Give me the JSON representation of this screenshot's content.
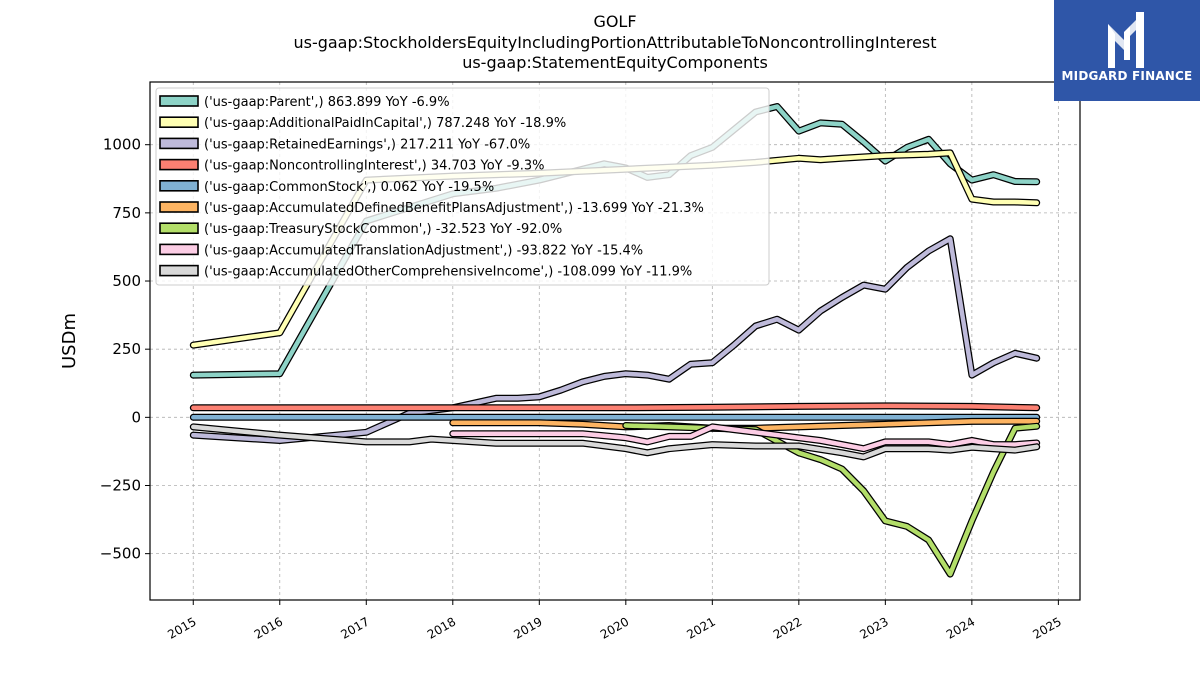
{
  "title_lines": [
    "GOLF",
    "us-gaap:StockholdersEquityIncludingPortionAttributableToNoncontrollingInterest",
    "us-gaap:StatementEquityComponents"
  ],
  "logo": {
    "text": "MIDGARD FINANCE",
    "bg": "#2f56a8"
  },
  "chart_data": {
    "type": "line",
    "title": "GOLF",
    "subtitle": "us-gaap:StockholdersEquityIncludingPortionAttributableToNoncontrollingInterest / us-gaap:StatementEquityComponents",
    "xlabel": "",
    "ylabel": "USDm",
    "xlim": [
      2014.5,
      2025.25
    ],
    "ylim": [
      -670,
      1230
    ],
    "x_ticks": [
      2015,
      2016,
      2017,
      2018,
      2019,
      2020,
      2021,
      2022,
      2023,
      2024,
      2025
    ],
    "y_ticks": [
      -500,
      -250,
      0,
      250,
      500,
      750,
      1000
    ],
    "y_tick_labels": [
      "−500",
      "−250",
      "0",
      "250",
      "500",
      "750",
      "1000"
    ],
    "grid": true,
    "legend_position": "upper-left",
    "series": [
      {
        "name": "('us-gaap:Parent',) 863.899 YoY -6.9%",
        "color": "#8dd3c7",
        "points": [
          [
            2015,
            155
          ],
          [
            2016,
            160
          ],
          [
            2017,
            720
          ],
          [
            2018,
            820
          ],
          [
            2018.5,
            840
          ],
          [
            2019,
            870
          ],
          [
            2019.75,
            930
          ],
          [
            2020,
            915
          ],
          [
            2020.25,
            880
          ],
          [
            2020.5,
            890
          ],
          [
            2020.75,
            960
          ],
          [
            2021,
            990
          ],
          [
            2021.5,
            1120
          ],
          [
            2021.75,
            1140
          ],
          [
            2022,
            1050
          ],
          [
            2022.25,
            1080
          ],
          [
            2022.5,
            1075
          ],
          [
            2022.75,
            1010
          ],
          [
            2023,
            940
          ],
          [
            2023.25,
            990
          ],
          [
            2023.5,
            1020
          ],
          [
            2023.75,
            930
          ],
          [
            2024,
            870
          ],
          [
            2024.25,
            890
          ],
          [
            2024.5,
            865
          ],
          [
            2024.75,
            864
          ]
        ]
      },
      {
        "name": "('us-gaap:AdditionalPaidInCapital',) 787.248 YoY -18.9%",
        "color": "#ffffb3",
        "points": [
          [
            2015,
            265
          ],
          [
            2016,
            310
          ],
          [
            2017,
            870
          ],
          [
            2018,
            885
          ],
          [
            2019,
            895
          ],
          [
            2020,
            910
          ],
          [
            2021,
            925
          ],
          [
            2021.5,
            935
          ],
          [
            2022,
            950
          ],
          [
            2022.25,
            945
          ],
          [
            2022.5,
            950
          ],
          [
            2023,
            960
          ],
          [
            2023.5,
            965
          ],
          [
            2023.75,
            970
          ],
          [
            2024,
            800
          ],
          [
            2024.25,
            790
          ],
          [
            2024.5,
            790
          ],
          [
            2024.75,
            787
          ]
        ]
      },
      {
        "name": "('us-gaap:RetainedEarnings',) 217.211 YoY -67.0%",
        "color": "#bebada",
        "points": [
          [
            2015,
            -65
          ],
          [
            2016,
            -85
          ],
          [
            2017,
            -55
          ],
          [
            2017.5,
            15
          ],
          [
            2018,
            35
          ],
          [
            2018.5,
            70
          ],
          [
            2018.75,
            70
          ],
          [
            2019,
            75
          ],
          [
            2019.25,
            100
          ],
          [
            2019.5,
            130
          ],
          [
            2019.75,
            150
          ],
          [
            2020,
            160
          ],
          [
            2020.25,
            155
          ],
          [
            2020.5,
            140
          ],
          [
            2020.75,
            195
          ],
          [
            2021,
            200
          ],
          [
            2021.25,
            265
          ],
          [
            2021.5,
            335
          ],
          [
            2021.75,
            360
          ],
          [
            2022,
            320
          ],
          [
            2022.25,
            390
          ],
          [
            2022.5,
            440
          ],
          [
            2022.75,
            485
          ],
          [
            2023,
            470
          ],
          [
            2023.25,
            550
          ],
          [
            2023.5,
            610
          ],
          [
            2023.75,
            655
          ],
          [
            2024,
            155
          ],
          [
            2024.25,
            200
          ],
          [
            2024.5,
            235
          ],
          [
            2024.75,
            217
          ]
        ]
      },
      {
        "name": "('us-gaap:NoncontrollingInterest',) 34.703 YoY -9.3%",
        "color": "#fb8072",
        "points": [
          [
            2015,
            35
          ],
          [
            2017,
            35
          ],
          [
            2018,
            35
          ],
          [
            2019,
            35
          ],
          [
            2020,
            35
          ],
          [
            2021,
            37
          ],
          [
            2022,
            40
          ],
          [
            2023,
            42
          ],
          [
            2024,
            40
          ],
          [
            2024.75,
            35
          ]
        ]
      },
      {
        "name": "('us-gaap:CommonStock',) 0.062 YoY -19.5%",
        "color": "#80b1d3",
        "points": [
          [
            2015,
            0
          ],
          [
            2016,
            0
          ],
          [
            2017,
            0
          ],
          [
            2018,
            0
          ],
          [
            2019,
            0
          ],
          [
            2020,
            0
          ],
          [
            2021,
            0
          ],
          [
            2022,
            0
          ],
          [
            2023,
            0
          ],
          [
            2024,
            0
          ],
          [
            2024.75,
            0
          ]
        ]
      },
      {
        "name": "('us-gaap:AccumulatedDefinedBenefitPlansAdjustment',) -13.699 YoY -21.3%",
        "color": "#fdb462",
        "points": [
          [
            2018,
            -20
          ],
          [
            2019,
            -20
          ],
          [
            2019.5,
            -25
          ],
          [
            2020,
            -35
          ],
          [
            2020.5,
            -30
          ],
          [
            2021,
            -40
          ],
          [
            2021.5,
            -40
          ],
          [
            2022,
            -35
          ],
          [
            2022.5,
            -30
          ],
          [
            2023,
            -25
          ],
          [
            2023.5,
            -20
          ],
          [
            2024,
            -15
          ],
          [
            2024.75,
            -14
          ]
        ]
      },
      {
        "name": "('us-gaap:TreasuryStockCommon',) -32.523 YoY -92.0%",
        "color": "#b3de69",
        "points": [
          [
            2020,
            -30
          ],
          [
            2021,
            -40
          ],
          [
            2021.5,
            -45
          ],
          [
            2022,
            -130
          ],
          [
            2022.25,
            -155
          ],
          [
            2022.5,
            -190
          ],
          [
            2022.75,
            -270
          ],
          [
            2023,
            -380
          ],
          [
            2023.25,
            -400
          ],
          [
            2023.5,
            -450
          ],
          [
            2023.75,
            -575
          ],
          [
            2024,
            -380
          ],
          [
            2024.25,
            -200
          ],
          [
            2024.5,
            -40
          ],
          [
            2024.75,
            -33
          ]
        ]
      },
      {
        "name": "('us-gaap:AccumulatedTranslationAdjustment',) -93.822 YoY -15.4%",
        "color": "#fccde5",
        "points": [
          [
            2018,
            -60
          ],
          [
            2019,
            -60
          ],
          [
            2019.5,
            -60
          ],
          [
            2020,
            -75
          ],
          [
            2020.25,
            -90
          ],
          [
            2020.5,
            -70
          ],
          [
            2020.75,
            -70
          ],
          [
            2021,
            -35
          ],
          [
            2021.25,
            -45
          ],
          [
            2021.5,
            -55
          ],
          [
            2022,
            -75
          ],
          [
            2022.25,
            -85
          ],
          [
            2022.5,
            -100
          ],
          [
            2022.75,
            -115
          ],
          [
            2023,
            -90
          ],
          [
            2023.25,
            -90
          ],
          [
            2023.5,
            -90
          ],
          [
            2023.75,
            -100
          ],
          [
            2024,
            -85
          ],
          [
            2024.25,
            -100
          ],
          [
            2024.5,
            -100
          ],
          [
            2024.75,
            -94
          ]
        ]
      },
      {
        "name": "('us-gaap:AccumulatedOtherComprehensiveIncome',) -108.099 YoY -11.9%",
        "color": "#d9d9d9",
        "points": [
          [
            2015,
            -35
          ],
          [
            2016,
            -65
          ],
          [
            2017,
            -90
          ],
          [
            2017.5,
            -90
          ],
          [
            2017.75,
            -80
          ],
          [
            2018,
            -85
          ],
          [
            2018.5,
            -95
          ],
          [
            2019,
            -95
          ],
          [
            2019.5,
            -95
          ],
          [
            2020,
            -115
          ],
          [
            2020.25,
            -130
          ],
          [
            2020.5,
            -115
          ],
          [
            2021,
            -100
          ],
          [
            2021.5,
            -105
          ],
          [
            2022,
            -105
          ],
          [
            2022.5,
            -130
          ],
          [
            2022.75,
            -145
          ],
          [
            2023,
            -115
          ],
          [
            2023.5,
            -115
          ],
          [
            2023.75,
            -120
          ],
          [
            2024,
            -110
          ],
          [
            2024.25,
            -115
          ],
          [
            2024.5,
            -120
          ],
          [
            2024.75,
            -108
          ]
        ]
      }
    ]
  }
}
